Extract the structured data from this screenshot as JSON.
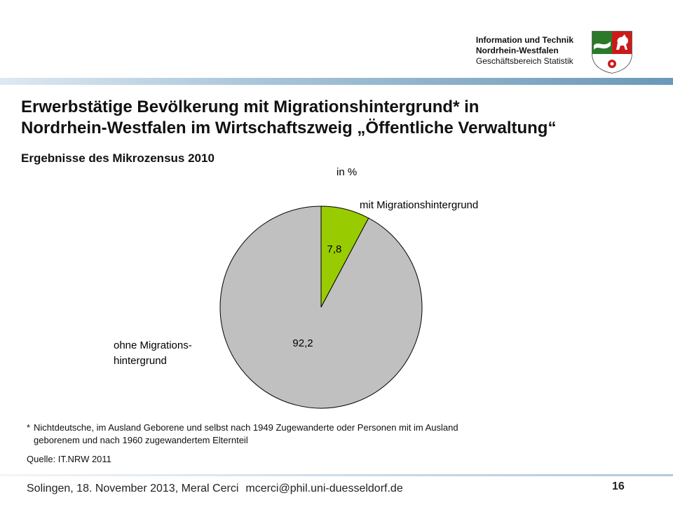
{
  "header": {
    "org_line1": "Information und Technik",
    "org_line2": "Nordrhein-Westfalen",
    "org_line3": "Geschäftsbereich Statistik",
    "logo": "nrw-coat-of-arms"
  },
  "slide": {
    "title_line1": "Erwerbstätige Bevölkerung mit Migrationshintergrund* in",
    "title_line2": "Nordrhein-Westfalen im Wirtschaftszweig „Öffentliche Verwaltung“",
    "subtitle": "Ergebnisse des Mikrozensus 2010",
    "unit": "in %",
    "footnote_star": "*",
    "footnote_line1": "Nichtdeutsche, im Ausland Geborene und selbst nach 1949 Zugewanderte oder Personen mit im Ausland",
    "footnote_line2": "geborenem und nach 1960 zugewandertem Elternteil",
    "source": "Quelle: IT.NRW 2011"
  },
  "chart_data": {
    "type": "pie",
    "categories": [
      "mit Migrationshintergrund",
      "ohne Migrations-hintergrund"
    ],
    "values": [
      7.8,
      92.2
    ],
    "value_labels": [
      "7,8",
      "92,2"
    ],
    "colors": [
      "#99cc00",
      "#c0c0c0"
    ],
    "label_mit": "mit Migrationshintergrund",
    "label_ohne_line1": "ohne Migrations-",
    "label_ohne_line2": "hintergrund",
    "start_angle": "12 o'clock",
    "direction": "clockwise"
  },
  "footer": {
    "text": "Solingen, 18. November 2013, Meral Cerci",
    "email": "mcerci@phil.uni-duesseldorf.de",
    "page": "16"
  }
}
